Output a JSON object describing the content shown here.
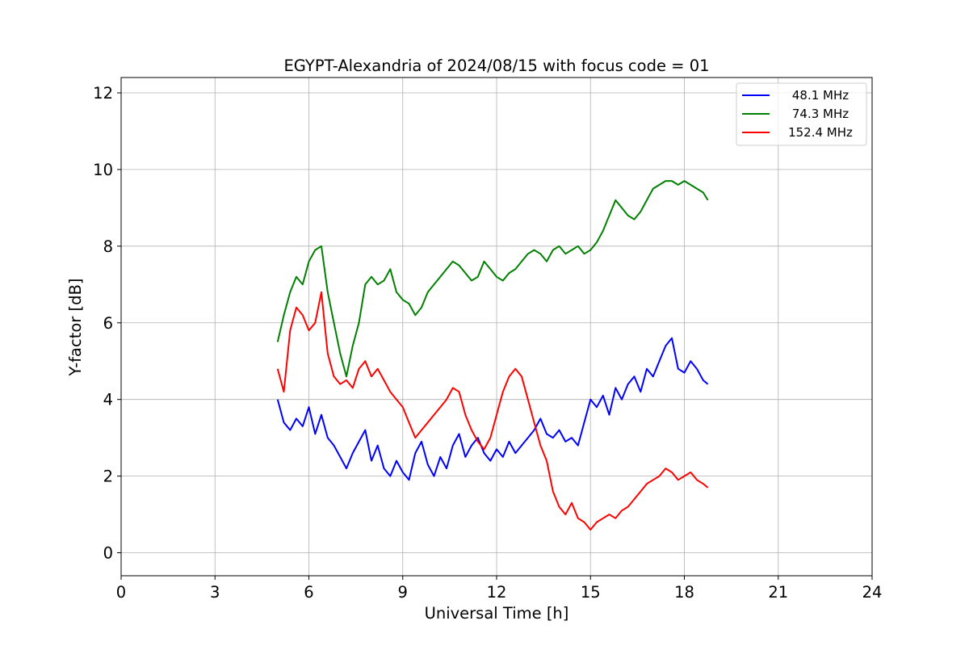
{
  "chart_data": {
    "type": "line",
    "title": "EGYPT-Alexandria of 2024/08/15 with focus code = 01",
    "xlabel": "Universal Time [h]",
    "ylabel": "Y-factor [dB]",
    "xlim": [
      0,
      24
    ],
    "ylim": [
      -0.6,
      12.4
    ],
    "xticks": [
      0,
      3,
      6,
      9,
      12,
      15,
      18,
      21,
      24
    ],
    "yticks": [
      0,
      2,
      4,
      6,
      8,
      10,
      12
    ],
    "grid": true,
    "legend_position": "top-right",
    "series": [
      {
        "name": "48.1 MHz",
        "color": "#0000ff",
        "x": [
          5.0,
          5.2,
          5.4,
          5.6,
          5.8,
          6.0,
          6.2,
          6.4,
          6.6,
          6.8,
          7.0,
          7.2,
          7.4,
          7.6,
          7.8,
          8.0,
          8.2,
          8.4,
          8.6,
          8.8,
          9.0,
          9.2,
          9.4,
          9.6,
          9.8,
          10.0,
          10.2,
          10.4,
          10.6,
          10.8,
          11.0,
          11.2,
          11.4,
          11.6,
          11.8,
          12.0,
          12.2,
          12.4,
          12.6,
          12.8,
          13.0,
          13.2,
          13.4,
          13.6,
          13.8,
          14.0,
          14.2,
          14.4,
          14.6,
          14.8,
          15.0,
          15.2,
          15.4,
          15.6,
          15.8,
          16.0,
          16.2,
          16.4,
          16.6,
          16.8,
          17.0,
          17.2,
          17.4,
          17.6,
          17.8,
          18.0,
          18.2,
          18.4,
          18.6,
          18.75
        ],
        "y": [
          4.0,
          3.4,
          3.2,
          3.5,
          3.3,
          3.8,
          3.1,
          3.6,
          3.0,
          2.8,
          2.5,
          2.2,
          2.6,
          2.9,
          3.2,
          2.4,
          2.8,
          2.2,
          2.0,
          2.4,
          2.1,
          1.9,
          2.6,
          2.9,
          2.3,
          2.0,
          2.5,
          2.2,
          2.8,
          3.1,
          2.5,
          2.8,
          3.0,
          2.6,
          2.4,
          2.7,
          2.5,
          2.9,
          2.6,
          2.8,
          3.0,
          3.2,
          3.5,
          3.1,
          3.0,
          3.2,
          2.9,
          3.0,
          2.8,
          3.4,
          4.0,
          3.8,
          4.1,
          3.6,
          4.3,
          4.0,
          4.4,
          4.6,
          4.2,
          4.8,
          4.6,
          5.0,
          5.4,
          5.6,
          4.8,
          4.7,
          5.0,
          4.8,
          4.5,
          4.4
        ]
      },
      {
        "name": "74.3 MHz",
        "color": "#008000",
        "x": [
          5.0,
          5.2,
          5.4,
          5.6,
          5.8,
          6.0,
          6.2,
          6.4,
          6.6,
          6.8,
          7.0,
          7.2,
          7.4,
          7.6,
          7.8,
          8.0,
          8.2,
          8.4,
          8.6,
          8.8,
          9.0,
          9.2,
          9.4,
          9.6,
          9.8,
          10.0,
          10.2,
          10.4,
          10.6,
          10.8,
          11.0,
          11.2,
          11.4,
          11.6,
          11.8,
          12.0,
          12.2,
          12.4,
          12.6,
          12.8,
          13.0,
          13.2,
          13.4,
          13.6,
          13.8,
          14.0,
          14.2,
          14.4,
          14.6,
          14.8,
          15.0,
          15.2,
          15.4,
          15.6,
          15.8,
          16.0,
          16.2,
          16.4,
          16.6,
          16.8,
          17.0,
          17.2,
          17.4,
          17.6,
          17.8,
          18.0,
          18.2,
          18.4,
          18.6,
          18.75
        ],
        "y": [
          5.5,
          6.2,
          6.8,
          7.2,
          7.0,
          7.6,
          7.9,
          8.0,
          6.8,
          6.0,
          5.2,
          4.6,
          5.4,
          6.0,
          7.0,
          7.2,
          7.0,
          7.1,
          7.4,
          6.8,
          6.6,
          6.5,
          6.2,
          6.4,
          6.8,
          7.0,
          7.2,
          7.4,
          7.6,
          7.5,
          7.3,
          7.1,
          7.2,
          7.6,
          7.4,
          7.2,
          7.1,
          7.3,
          7.4,
          7.6,
          7.8,
          7.9,
          7.8,
          7.6,
          7.9,
          8.0,
          7.8,
          7.9,
          8.0,
          7.8,
          7.9,
          8.1,
          8.4,
          8.8,
          9.2,
          9.0,
          8.8,
          8.7,
          8.9,
          9.2,
          9.5,
          9.6,
          9.7,
          9.7,
          9.6,
          9.7,
          9.6,
          9.5,
          9.4,
          9.2
        ]
      },
      {
        "name": "152.4 MHz",
        "color": "#ff0000",
        "x": [
          5.0,
          5.2,
          5.4,
          5.6,
          5.8,
          6.0,
          6.2,
          6.4,
          6.6,
          6.8,
          7.0,
          7.2,
          7.4,
          7.6,
          7.8,
          8.0,
          8.2,
          8.4,
          8.6,
          8.8,
          9.0,
          9.2,
          9.4,
          9.6,
          9.8,
          10.0,
          10.2,
          10.4,
          10.6,
          10.8,
          11.0,
          11.2,
          11.4,
          11.6,
          11.8,
          12.0,
          12.2,
          12.4,
          12.6,
          12.8,
          13.0,
          13.2,
          13.4,
          13.6,
          13.8,
          14.0,
          14.2,
          14.4,
          14.6,
          14.8,
          15.0,
          15.2,
          15.4,
          15.6,
          15.8,
          16.0,
          16.2,
          16.4,
          16.6,
          16.8,
          17.0,
          17.2,
          17.4,
          17.6,
          17.8,
          18.0,
          18.2,
          18.4,
          18.6,
          18.75
        ],
        "y": [
          4.8,
          4.2,
          5.8,
          6.4,
          6.2,
          5.8,
          6.0,
          6.8,
          5.2,
          4.6,
          4.4,
          4.5,
          4.3,
          4.8,
          5.0,
          4.6,
          4.8,
          4.5,
          4.2,
          4.0,
          3.8,
          3.4,
          3.0,
          3.2,
          3.4,
          3.6,
          3.8,
          4.0,
          4.3,
          4.2,
          3.6,
          3.2,
          2.9,
          2.7,
          3.0,
          3.6,
          4.2,
          4.6,
          4.8,
          4.6,
          4.0,
          3.4,
          2.8,
          2.4,
          1.6,
          1.2,
          1.0,
          1.3,
          0.9,
          0.8,
          0.6,
          0.8,
          0.9,
          1.0,
          0.9,
          1.1,
          1.2,
          1.4,
          1.6,
          1.8,
          1.9,
          2.0,
          2.2,
          2.1,
          1.9,
          2.0,
          2.1,
          1.9,
          1.8,
          1.7
        ]
      }
    ]
  }
}
